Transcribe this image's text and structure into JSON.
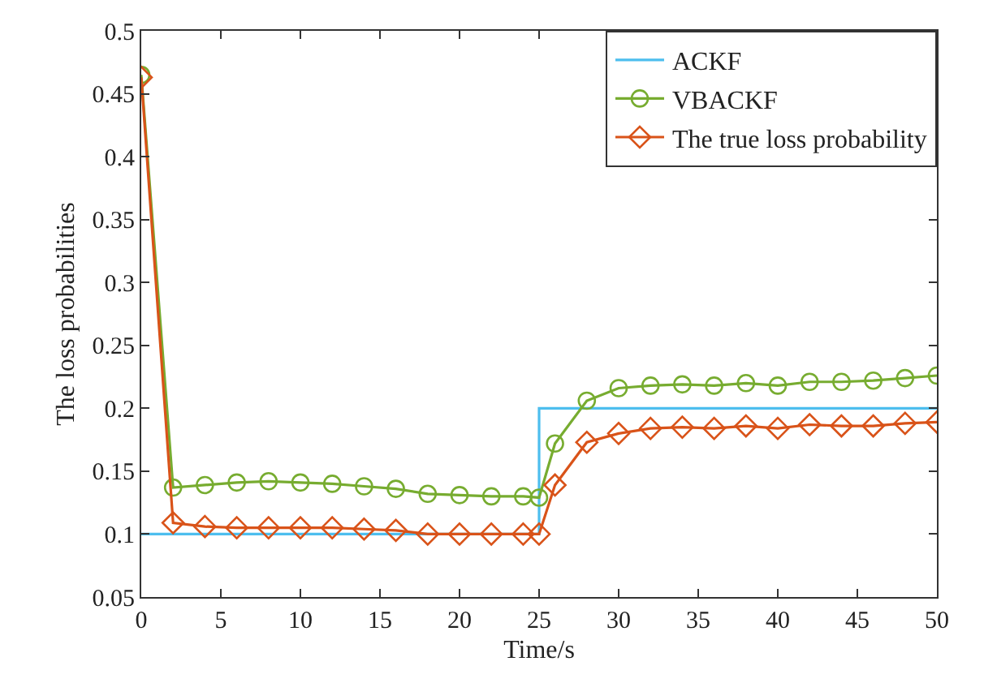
{
  "chart_data": {
    "type": "line",
    "xlabel": "Time/s",
    "ylabel": "The loss probabilities",
    "xlim": [
      0,
      50
    ],
    "xticks": [
      0,
      5,
      10,
      15,
      20,
      25,
      30,
      35,
      40,
      45,
      50
    ],
    "ylim": [
      0.05,
      0.5
    ],
    "yticks": [
      0.05,
      0.1,
      0.15,
      0.2,
      0.25,
      0.3,
      0.35,
      0.4,
      0.45,
      0.5
    ],
    "legend": "top right",
    "series": [
      {
        "name": "ACKF",
        "type": "step",
        "color": "#4dbeee",
        "marker": "none",
        "x": [
          0,
          25,
          50
        ],
        "values": [
          0.1,
          0.2,
          0.2
        ]
      },
      {
        "name": "VBACKF",
        "color": "#77ac30",
        "marker": "circle",
        "x": [
          0,
          2,
          4,
          6,
          8,
          10,
          12,
          14,
          16,
          18,
          20,
          22,
          24,
          25,
          26,
          28,
          30,
          32,
          34,
          36,
          38,
          40,
          42,
          44,
          46,
          48,
          50
        ],
        "values": [
          0.465,
          0.137,
          0.139,
          0.141,
          0.142,
          0.141,
          0.14,
          0.138,
          0.136,
          0.132,
          0.131,
          0.13,
          0.13,
          0.129,
          0.172,
          0.206,
          0.216,
          0.218,
          0.219,
          0.218,
          0.22,
          0.218,
          0.221,
          0.221,
          0.222,
          0.224,
          0.226
        ]
      },
      {
        "name": "The true loss probability",
        "color": "#d95319",
        "marker": "diamond",
        "x": [
          0,
          2,
          4,
          6,
          8,
          10,
          12,
          14,
          16,
          18,
          20,
          22,
          24,
          25,
          26,
          28,
          30,
          32,
          34,
          36,
          38,
          40,
          42,
          44,
          46,
          48,
          50
        ],
        "values": [
          0.463,
          0.109,
          0.106,
          0.105,
          0.105,
          0.105,
          0.105,
          0.104,
          0.103,
          0.1,
          0.1,
          0.1,
          0.1,
          0.1,
          0.139,
          0.173,
          0.18,
          0.184,
          0.185,
          0.184,
          0.186,
          0.184,
          0.187,
          0.186,
          0.186,
          0.188,
          0.189
        ]
      }
    ]
  }
}
